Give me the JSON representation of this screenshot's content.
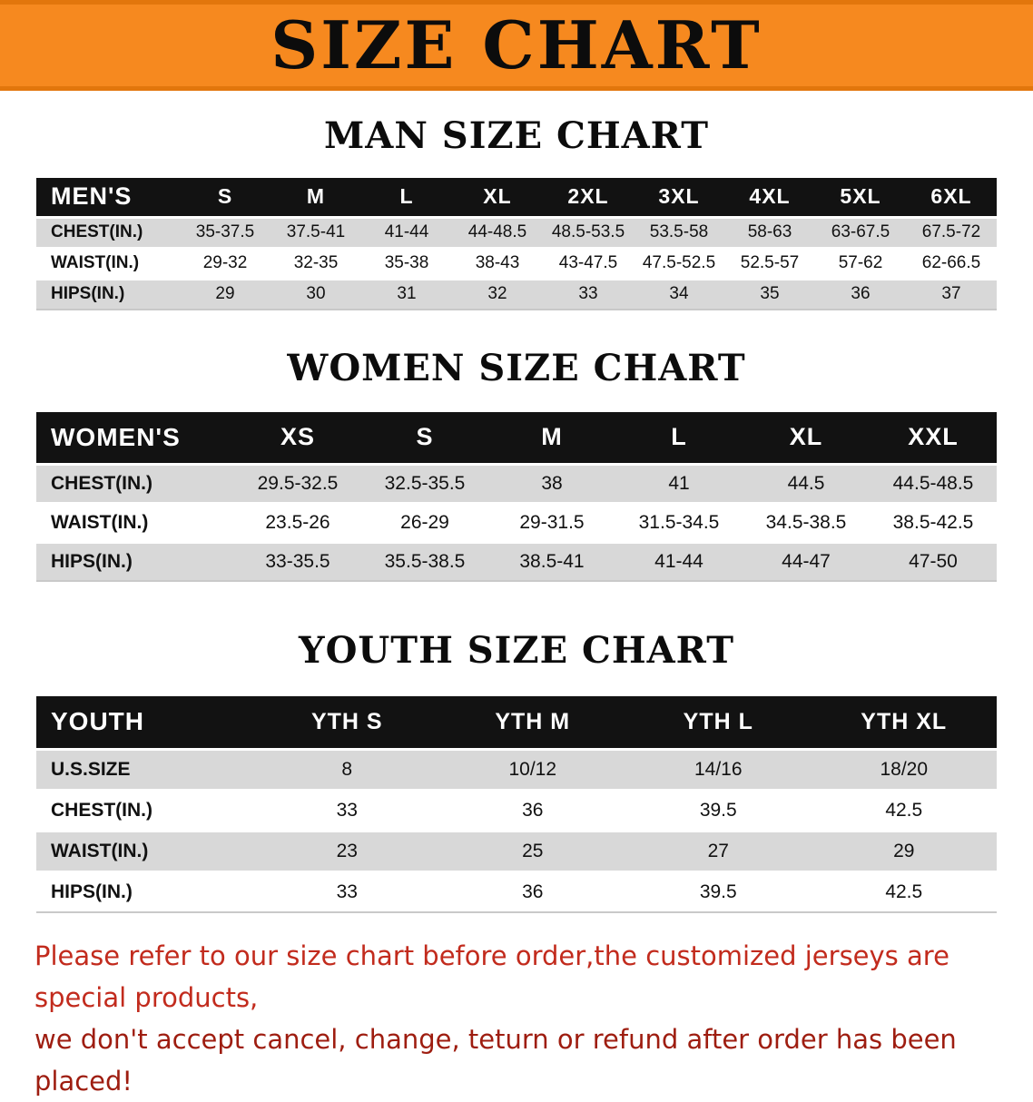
{
  "banner": {
    "title": "SIZE CHART",
    "bg_color": "#f6891f",
    "text_color": "#0c0c0c"
  },
  "sections": [
    {
      "heading": "MAN SIZE CHART",
      "table": {
        "header": [
          "MEN'S",
          "S",
          "M",
          "L",
          "XL",
          "2XL",
          "3XL",
          "4XL",
          "5XL",
          "6XL"
        ],
        "rows": [
          [
            "CHEST(IN.)",
            "35-37.5",
            "37.5-41",
            "41-44",
            "44-48.5",
            "48.5-53.5",
            "53.5-58",
            "58-63",
            "63-67.5",
            "67.5-72"
          ],
          [
            "WAIST(IN.)",
            "29-32",
            "32-35",
            "35-38",
            "38-43",
            "43-47.5",
            "47.5-52.5",
            "52.5-57",
            "57-62",
            "62-66.5"
          ],
          [
            "HIPS(IN.)",
            "29",
            "30",
            "31",
            "32",
            "33",
            "34",
            "35",
            "36",
            "37"
          ]
        ]
      }
    },
    {
      "heading": "WOMEN SIZE CHART",
      "table": {
        "header": [
          "WOMEN'S",
          "XS",
          "S",
          "M",
          "L",
          "XL",
          "XXL"
        ],
        "rows": [
          [
            "CHEST(IN.)",
            "29.5-32.5",
            "32.5-35.5",
            "38",
            "41",
            "44.5",
            "44.5-48.5"
          ],
          [
            "WAIST(IN.)",
            "23.5-26",
            "26-29",
            "29-31.5",
            "31.5-34.5",
            "34.5-38.5",
            "38.5-42.5"
          ],
          [
            "HIPS(IN.)",
            "33-35.5",
            "35.5-38.5",
            "38.5-41",
            "41-44",
            "44-47",
            "47-50"
          ]
        ]
      }
    },
    {
      "heading": "YOUTH SIZE CHART",
      "table": {
        "header": [
          "YOUTH",
          "YTH S",
          "YTH M",
          "YTH L",
          "YTH XL"
        ],
        "rows": [
          [
            "U.S.SIZE",
            "8",
            "10/12",
            "14/16",
            "18/20"
          ],
          [
            "CHEST(IN.)",
            "33",
            "36",
            "39.5",
            "42.5"
          ],
          [
            "WAIST(IN.)",
            "23",
            "25",
            "27",
            "29"
          ],
          [
            "HIPS(IN.)",
            "33",
            "36",
            "39.5",
            "42.5"
          ]
        ]
      }
    }
  ],
  "disclaimer": {
    "line1": "Please refer to our size chart before order,the customized jerseys are special products,",
    "line2": "we don't accept cancel, change, teturn or refund after order has been placed!",
    "color_line1": "#c22b1d",
    "color_line2": "#9e1d10"
  },
  "colors": {
    "table_header_bg": "#121212",
    "table_header_text": "#ffffff",
    "row_shaded": "#d8d8d8",
    "row_plain": "#ffffff"
  }
}
